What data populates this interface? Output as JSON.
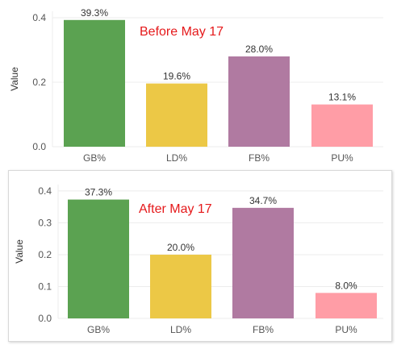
{
  "chart_data": [
    {
      "type": "bar",
      "categories": [
        "GB%",
        "LD%",
        "FB%",
        "PU%"
      ],
      "values": [
        0.393,
        0.196,
        0.28,
        0.131
      ],
      "data_labels": [
        "39.3%",
        "19.6%",
        "28.0%",
        "13.1%"
      ],
      "colors": [
        "#5ba251",
        "#ecc846",
        "#b07aa1",
        "#ff9da6"
      ],
      "ylabel": "Value",
      "yticks": [
        "0.0",
        "0.2",
        "0.4"
      ],
      "ylim": [
        0,
        0.42
      ],
      "annotation": "Before May 17",
      "grid": true
    },
    {
      "type": "bar",
      "categories": [
        "GB%",
        "LD%",
        "FB%",
        "PU%"
      ],
      "values": [
        0.373,
        0.2,
        0.347,
        0.08
      ],
      "data_labels": [
        "37.3%",
        "20.0%",
        "34.7%",
        "8.0%"
      ],
      "colors": [
        "#5ba251",
        "#ecc846",
        "#b07aa1",
        "#ff9da6"
      ],
      "ylabel": "Value",
      "yticks": [
        "0.0",
        "0.1",
        "0.2",
        "0.3",
        "0.4"
      ],
      "ylim": [
        0,
        0.42
      ],
      "annotation": "After May 17",
      "grid": true
    }
  ]
}
